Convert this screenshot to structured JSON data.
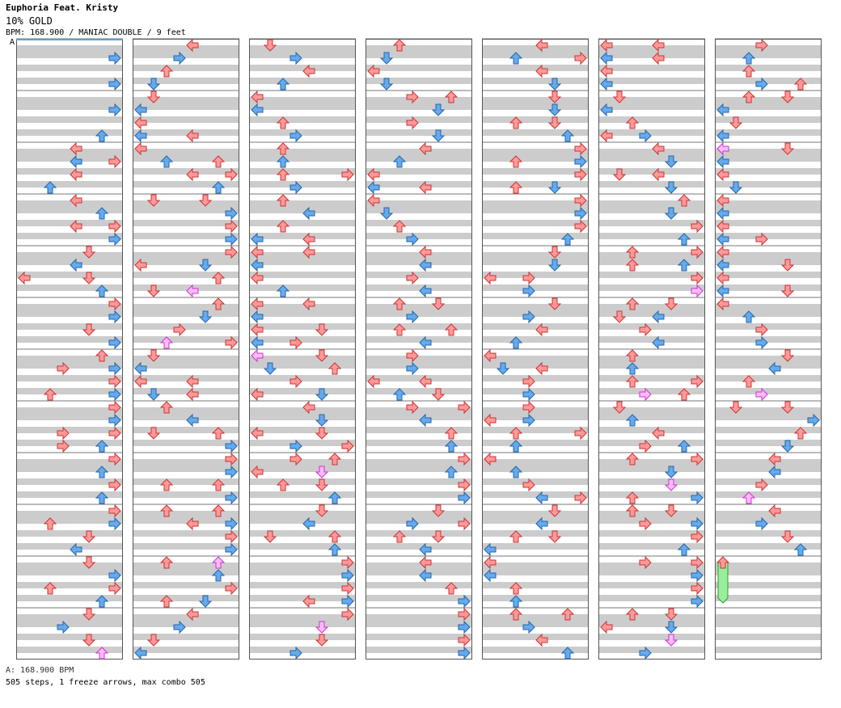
{
  "song": {
    "title": "Euphoria Feat. Kristy",
    "subtitle": "10% GOLD",
    "info": "BPM: 168.900 / MANIAC DOUBLE / 9 feet"
  },
  "chart": {
    "bpm_marker_label": "A",
    "columns": 7,
    "measures_per_column": 12,
    "lanes": 8,
    "colors": {
      "blue_arrow": "#66aaee",
      "red_arrow": "#ff9999",
      "pink_arrow": "#ffbbff",
      "freeze": "#99ee99",
      "stripe": "#cccccc"
    }
  },
  "footer": {
    "bpm_line": "A: 168.900 BPM",
    "stats": "505 steps, 1 freeze arrows, max combo 505"
  }
}
